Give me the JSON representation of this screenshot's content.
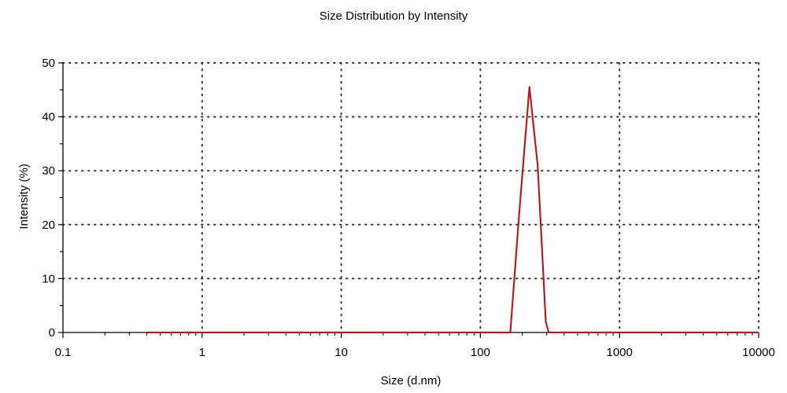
{
  "chart_data": {
    "type": "line",
    "title": "Size Distribution by Intensity",
    "xlabel": "Size (d.nm)",
    "ylabel": "Intensity (%)",
    "x_scale": "log",
    "xlim": [
      0.1,
      10000
    ],
    "ylim": [
      0,
      50
    ],
    "x_ticks": [
      0.1,
      1,
      10,
      100,
      1000,
      10000
    ],
    "x_tick_labels": [
      "0.1",
      "1",
      "10",
      "100",
      "1000",
      "10000"
    ],
    "y_ticks": [
      0,
      10,
      20,
      30,
      40,
      50
    ],
    "y_tick_labels": [
      "0",
      "10",
      "20",
      "30",
      "40",
      "50"
    ],
    "grid": true,
    "grid_style": "dotted",
    "legend": "none",
    "series": [
      {
        "color": "#b02020",
        "points": [
          {
            "x": 0.4,
            "y": 0
          },
          {
            "x": 10,
            "y": 0
          },
          {
            "x": 164,
            "y": 0
          },
          {
            "x": 190,
            "y": 22
          },
          {
            "x": 225,
            "y": 45.5
          },
          {
            "x": 258,
            "y": 31
          },
          {
            "x": 295,
            "y": 2
          },
          {
            "x": 310,
            "y": 0
          },
          {
            "x": 1000,
            "y": 0
          },
          {
            "x": 10000,
            "y": 0
          }
        ]
      }
    ]
  }
}
